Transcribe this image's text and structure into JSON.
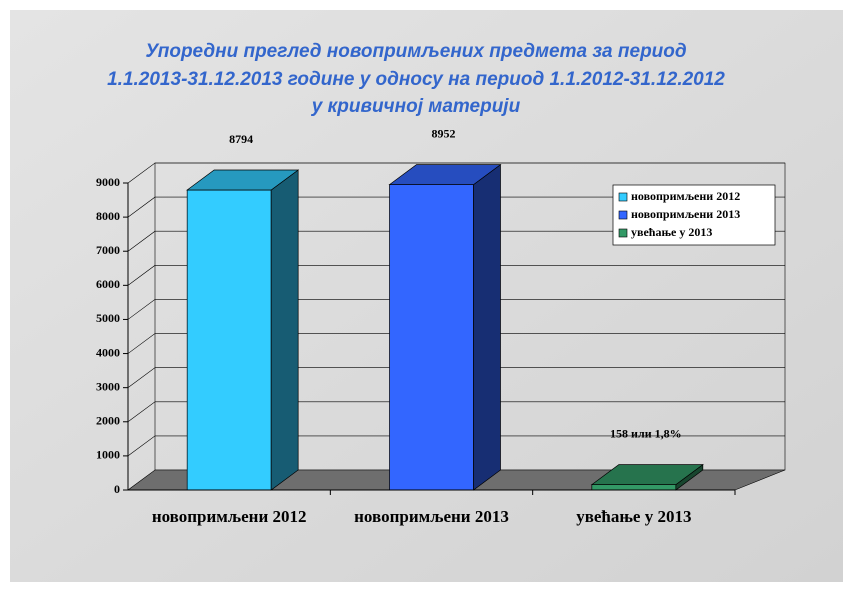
{
  "chart_data": {
    "type": "bar3d",
    "title": [
      "Упоредни преглед новопримљених предмета за период",
      "1.1.2013-31.12.2013 године у односу на период 1.1.2012-31.12.2012",
      "у кривичној материји"
    ],
    "categories": [
      "новопримљени 2012",
      "новопримљени 2013",
      "увећање у 2013"
    ],
    "values": [
      8794,
      8952,
      158
    ],
    "value_labels": [
      "8794",
      "8952",
      "158 или 1,8%"
    ],
    "colors": [
      "#33ccff",
      "#3366ff",
      "#339966"
    ],
    "ylim": [
      0,
      9000
    ],
    "yticks": [
      0,
      1000,
      2000,
      3000,
      4000,
      5000,
      6000,
      7000,
      8000,
      9000
    ],
    "grid": true,
    "legend": "upper right"
  }
}
